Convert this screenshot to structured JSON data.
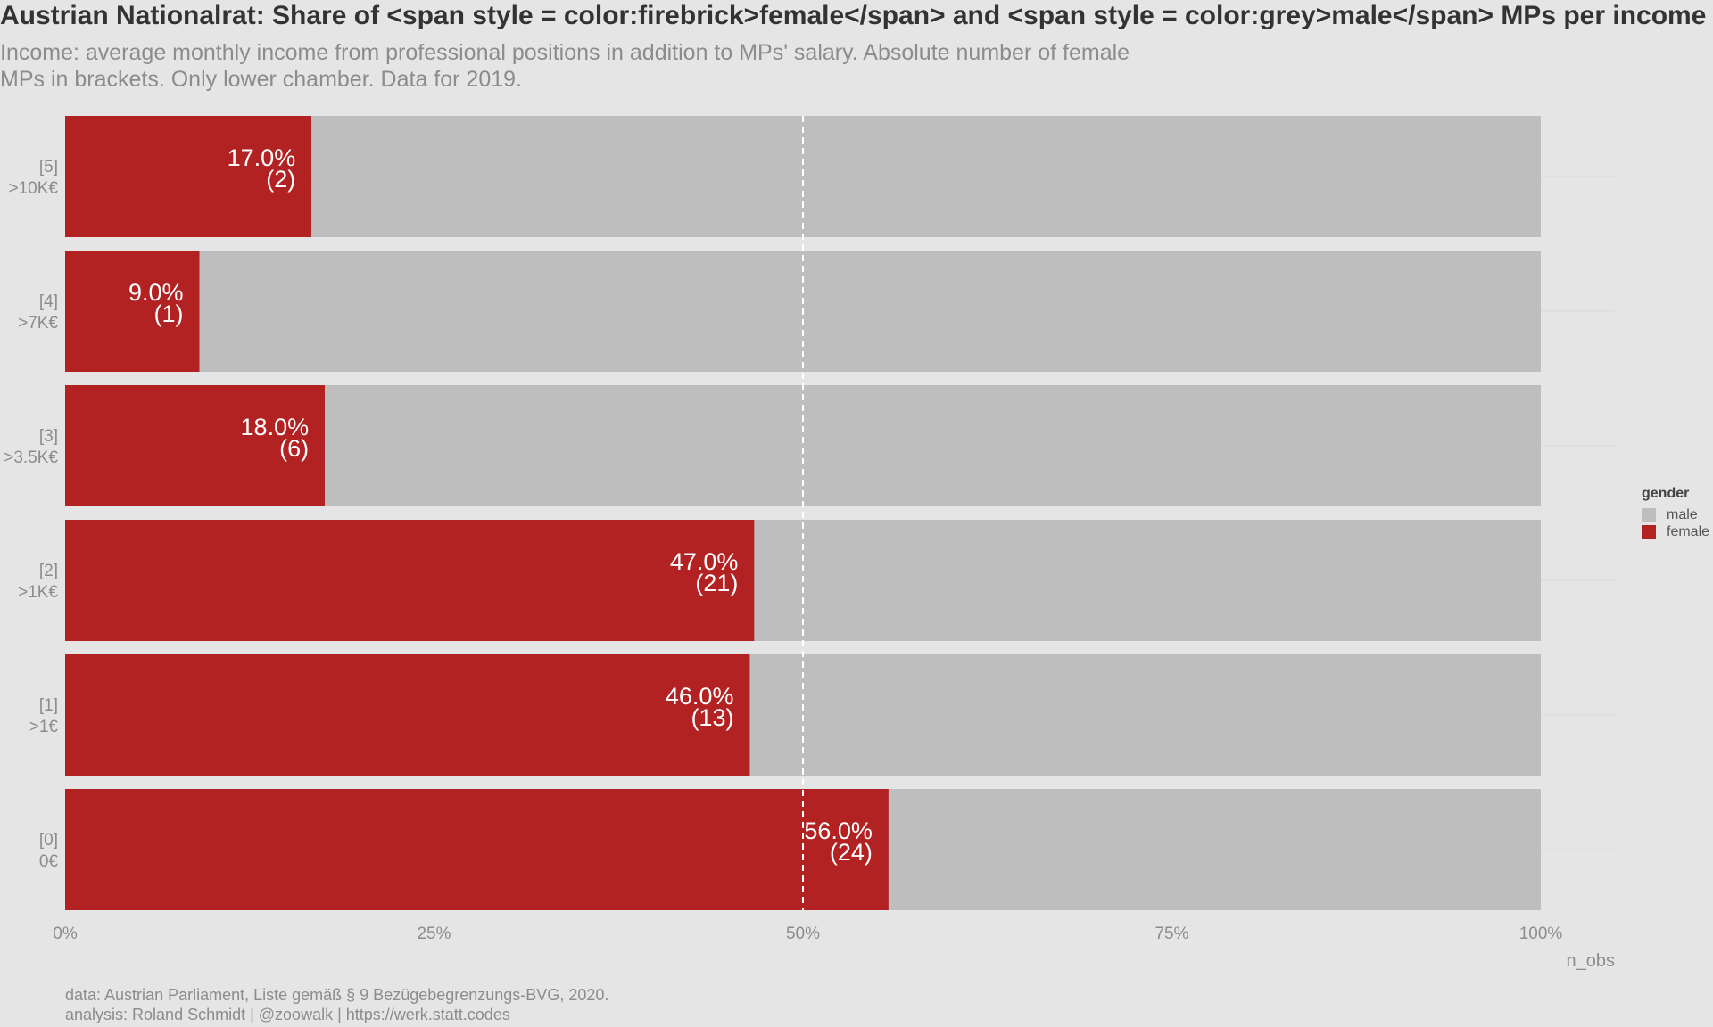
{
  "title": "Austrian Nationalrat: Share of <span style  = color:firebrick>female</span> and <span style = color:grey>male</span> MPs per income ca",
  "subtitle": "Income: average monthly income from professional positions in addition to MPs' salary. Absolute number of female MPs in brackets. Only lower chamber. Data for 2019.",
  "caption_line1": "data: Austrian Parliament, Liste gemäß § 9 Bezügebegrenzungs-BVG, 2020.",
  "caption_line2": "analysis: Roland Schmidt | @zoowalk | https://werk.statt.codes",
  "legend": {
    "title": "gender",
    "items": [
      {
        "label": "male",
        "color": "#bebebe"
      },
      {
        "label": "female",
        "color": "#b22222"
      }
    ]
  },
  "colors": {
    "female": "#b22222",
    "male": "#bebebe",
    "background": "#e5e5e5",
    "reference_line": "#ffffff"
  },
  "chart_data": {
    "type": "bar",
    "orientation": "horizontal",
    "stacked": true,
    "title": "Austrian Nationalrat: Share of <span style  = color:firebrick>female</span> and <span style = color:grey>male</span> MPs per income ca",
    "xlabel": "n_obs",
    "ylabel": "",
    "xlim": [
      0,
      1
    ],
    "x_ticks": [
      "0%",
      "25%",
      "50%",
      "75%",
      "100%"
    ],
    "x_tick_values": [
      0,
      0.25,
      0.5,
      0.75,
      1
    ],
    "reference_line": 0.5,
    "categories": [
      {
        "code": "[5]",
        "label": ">10K€"
      },
      {
        "code": "[4]",
        "label": ">7K€"
      },
      {
        "code": "[3]",
        "label": ">3.5K€"
      },
      {
        "code": "[2]",
        "label": ">1K€"
      },
      {
        "code": "[1]",
        "label": ">1€"
      },
      {
        "code": "[0]",
        "label": "0€"
      }
    ],
    "series": [
      {
        "name": "female",
        "values": [
          0.167,
          0.091,
          0.176,
          0.467,
          0.464,
          0.558
        ]
      },
      {
        "name": "male",
        "values": [
          0.833,
          0.909,
          0.824,
          0.533,
          0.536,
          0.442
        ]
      }
    ],
    "data_labels": [
      {
        "pct": "17.0%",
        "count": "(2)"
      },
      {
        "pct": "9.0%",
        "count": "(1)"
      },
      {
        "pct": "18.0%",
        "count": "(6)"
      },
      {
        "pct": "47.0%",
        "count": "(21)"
      },
      {
        "pct": "46.0%",
        "count": "(13)"
      },
      {
        "pct": "56.0%",
        "count": "(24)"
      }
    ],
    "legend_position": "right",
    "grid": "horizontal-minor-only"
  }
}
